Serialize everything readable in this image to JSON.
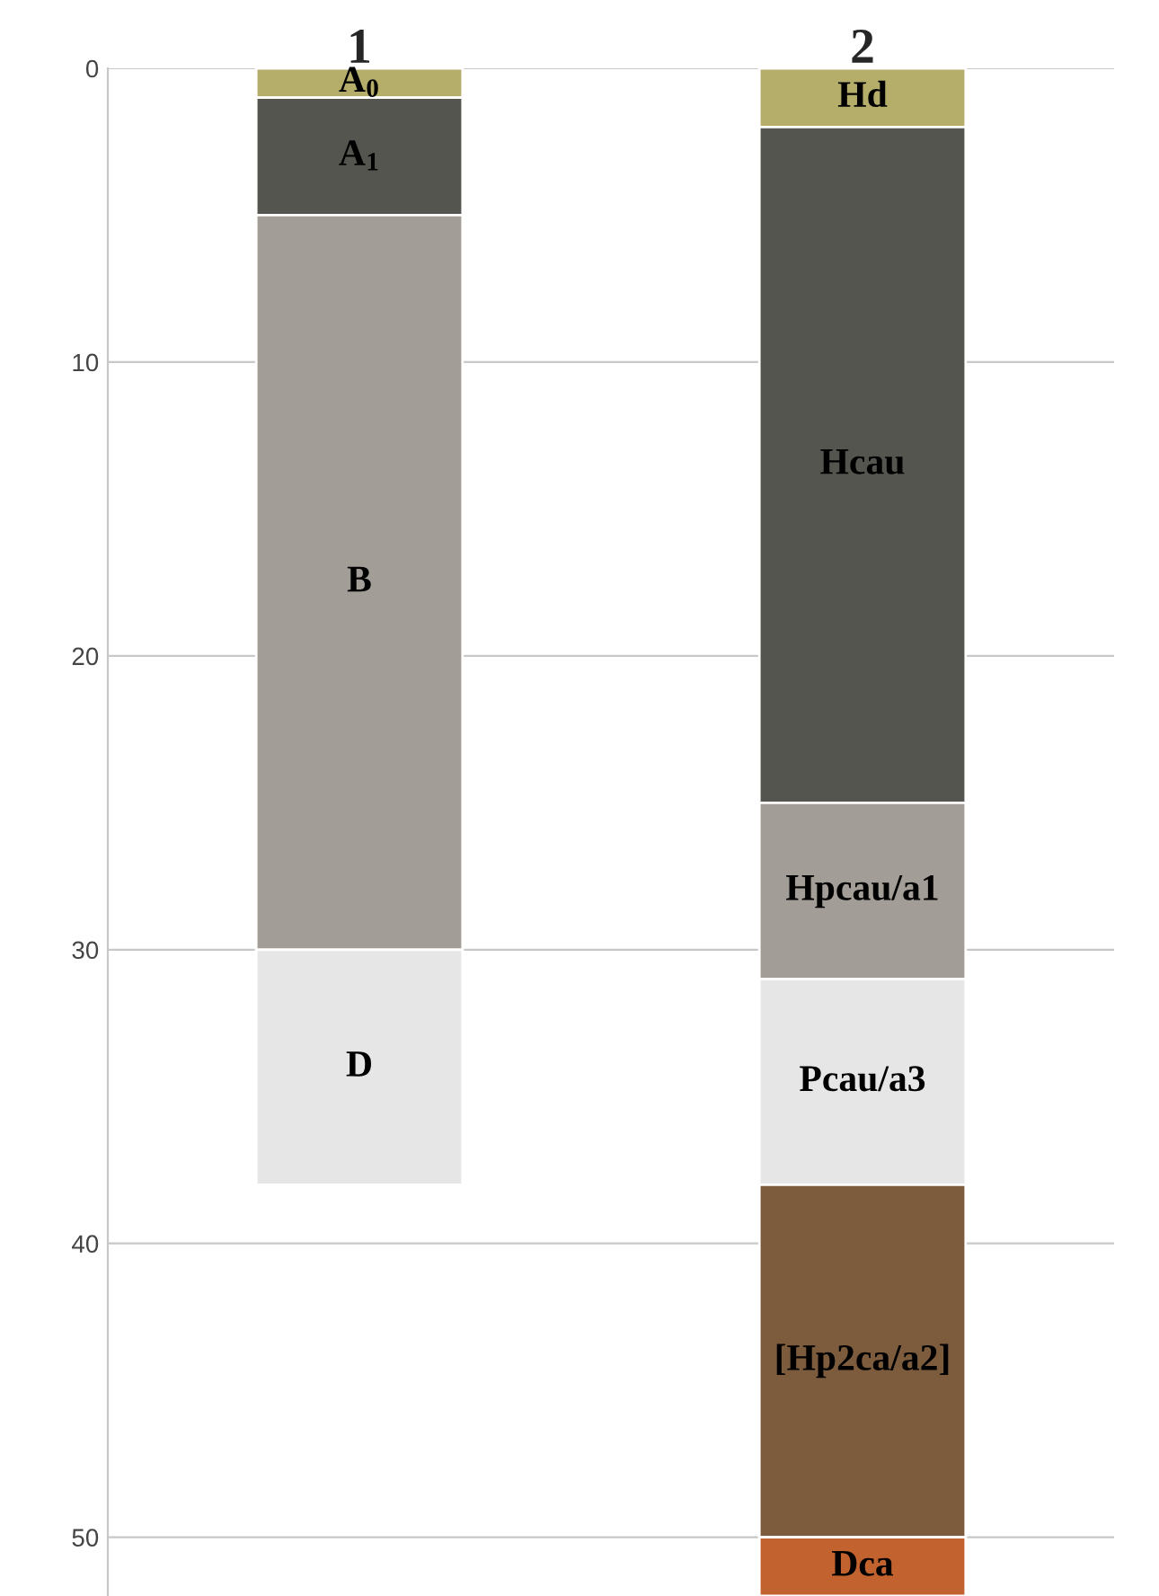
{
  "chart_data": {
    "type": "bar",
    "stacked": true,
    "categories": [
      "1",
      "2"
    ],
    "ylim": [
      52,
      0
    ],
    "yticks": [
      0,
      10,
      20,
      30,
      40,
      50
    ],
    "grid": "y",
    "series": [
      {
        "colors": [
          "#b5ad6a",
          "#b5ad6a"
        ],
        "values": [
          1,
          2
        ]
      },
      {
        "colors": [
          "#55554f",
          "#55554f"
        ],
        "values": [
          4,
          23
        ]
      },
      {
        "colors": [
          "#a39d98",
          "#a39d98"
        ],
        "values": [
          25,
          6
        ]
      },
      {
        "colors": [
          "#e6e6e6",
          "#e6e6e6"
        ],
        "values": [
          8,
          7
        ]
      },
      {
        "colors": [
          "#7d5c3e",
          "#7d5c3e"
        ],
        "values": [
          null,
          12
        ]
      },
      {
        "colors": [
          "#c2622f",
          "#c2622f"
        ],
        "values": [
          null,
          2
        ]
      }
    ],
    "annotations": [
      "A$_{0}$",
      "A$_{1}$",
      "B",
      "D",
      "Hd",
      "Hcau",
      "Hpcau/a1",
      "Pcau/a3",
      "[Hp2ca/a2]",
      "Dca"
    ]
  }
}
